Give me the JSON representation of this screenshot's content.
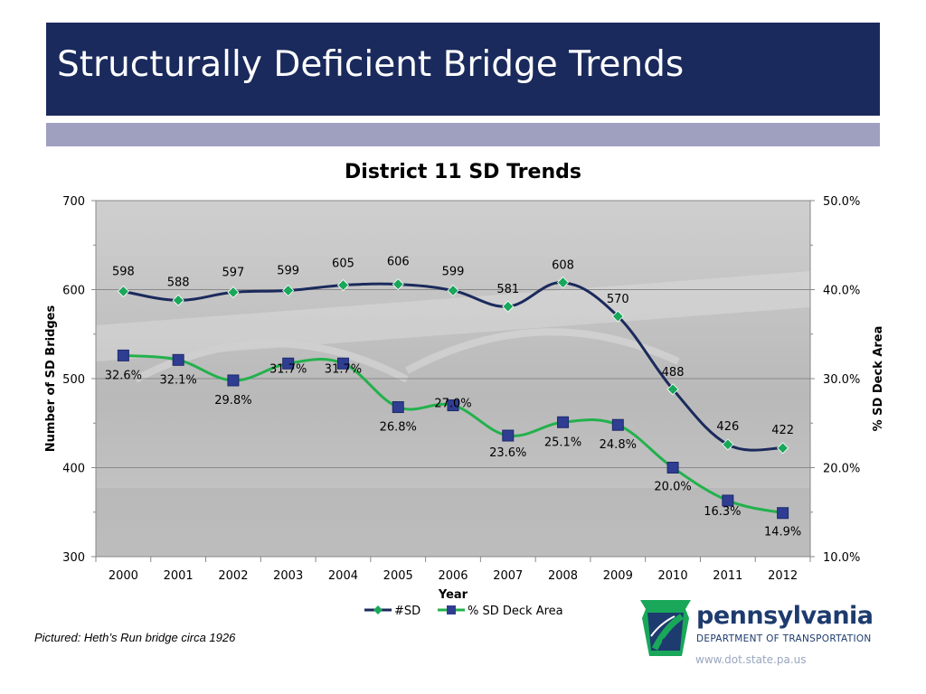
{
  "slide": {
    "title": "Structurally Deficient Bridge Trends",
    "caption": "Pictured:  Heth’s Run bridge circa 1926"
  },
  "logo": {
    "name": "pennsylvania",
    "department": "DEPARTMENT OF TRANSPORTATION",
    "url": "www.dot.state.pa.us"
  },
  "colors": {
    "title_bar": "#1a2a5c",
    "stripe": "#9fa0c0",
    "sd_line": "#1b2a5c",
    "sd_marker": "#19a75a",
    "deck_line": "#22b14c",
    "deck_marker": "#2f3d92",
    "plot_bg": "#bdbdbd",
    "logo_blue": "#1d3b6e",
    "logo_green": "#19a75a"
  },
  "chart_data": {
    "type": "line",
    "title": "District 11 SD Trends",
    "xlabel": "Year",
    "ylabel": "Number of SD Bridges",
    "y2label": "% SD Deck Area",
    "categories": [
      "2000",
      "2001",
      "2002",
      "2003",
      "2004",
      "2005",
      "2006",
      "2007",
      "2008",
      "2009",
      "2010",
      "2011",
      "2012"
    ],
    "ylim": [
      300,
      700
    ],
    "y_ticks": [
      "300",
      "400",
      "500",
      "600",
      "700"
    ],
    "y2lim": [
      10,
      50
    ],
    "y2_ticks": [
      "10.0%",
      "20.0%",
      "30.0%",
      "40.0%",
      "50.0%"
    ],
    "grid": true,
    "legend_position": "bottom",
    "series": [
      {
        "name": "#SD",
        "axis": "left",
        "values": [
          598,
          588,
          597,
          599,
          605,
          606,
          599,
          581,
          608,
          570,
          488,
          426,
          422
        ],
        "labels": [
          "598",
          "588",
          "597",
          "599",
          "605",
          "606",
          "599",
          "581",
          "608",
          "570",
          "488",
          "426",
          "422"
        ],
        "marker": "diamond"
      },
      {
        "name": "% SD Deck Area",
        "axis": "right",
        "values": [
          32.6,
          32.1,
          29.8,
          31.7,
          31.7,
          26.8,
          27.0,
          23.6,
          25.1,
          24.8,
          20.0,
          16.3,
          14.9
        ],
        "labels": [
          "32.6%",
          "32.1%",
          "29.8%",
          "31.7%",
          "31.7%",
          "26.8%",
          "27.0%",
          "23.6%",
          "25.1%",
          "24.8%",
          "20.0%",
          "16.3%",
          "14.9%"
        ],
        "marker": "square"
      }
    ]
  }
}
